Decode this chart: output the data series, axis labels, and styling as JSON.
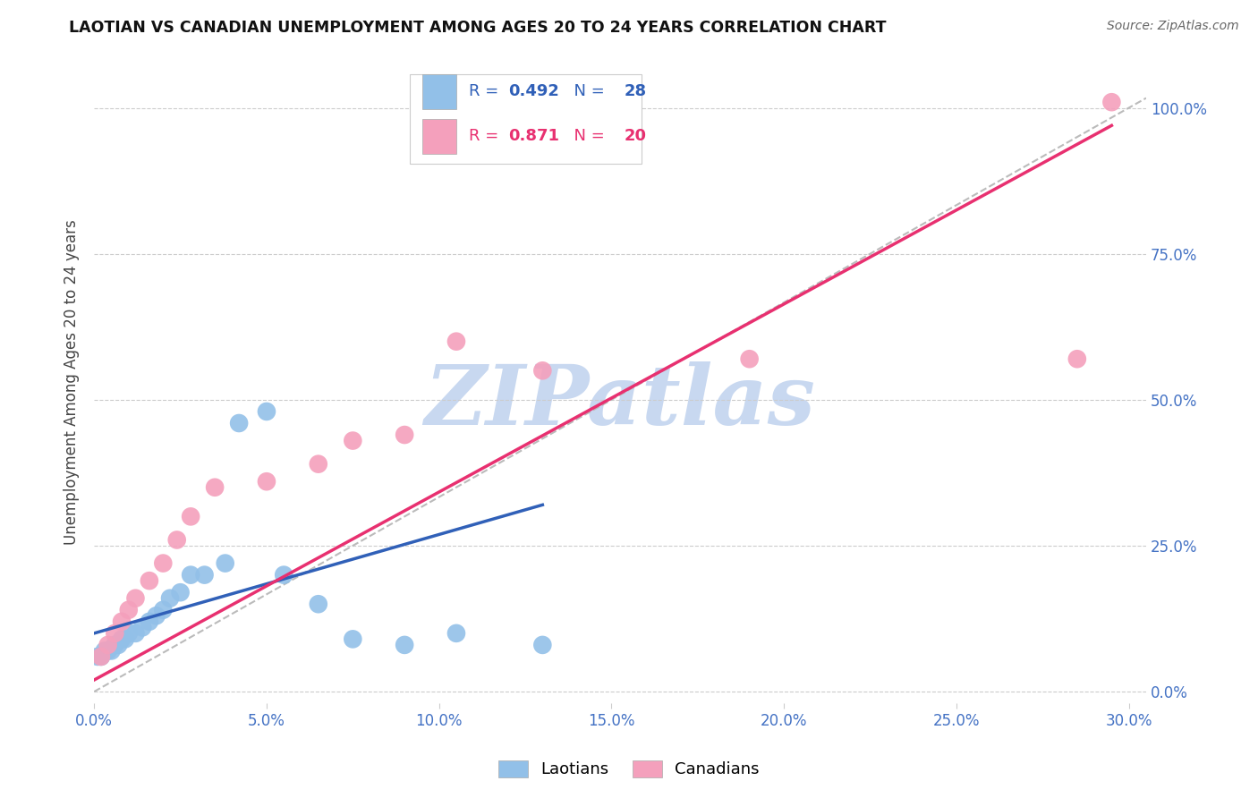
{
  "title": "LAOTIAN VS CANADIAN UNEMPLOYMENT AMONG AGES 20 TO 24 YEARS CORRELATION CHART",
  "source": "Source: ZipAtlas.com",
  "xlabel_ticks": [
    "0.0%",
    "5.0%",
    "10.0%",
    "15.0%",
    "20.0%",
    "25.0%",
    "30.0%"
  ],
  "xlabel_values": [
    0.0,
    0.05,
    0.1,
    0.15,
    0.2,
    0.25,
    0.3
  ],
  "ylabel": "Unemployment Among Ages 20 to 24 years",
  "ylabel_ticks_right": [
    "0.0%",
    "25.0%",
    "50.0%",
    "75.0%",
    "100.0%"
  ],
  "ylabel_values_right": [
    0.0,
    0.25,
    0.5,
    0.75,
    1.0
  ],
  "xlim": [
    0.0,
    0.305
  ],
  "ylim": [
    -0.02,
    1.08
  ],
  "blue_color": "#92C0E8",
  "pink_color": "#F4A0BC",
  "blue_line_color": "#3060B8",
  "pink_line_color": "#E83070",
  "ref_line_color": "#BBBBBB",
  "watermark": "ZIPatlas",
  "watermark_color": "#C8D8F0",
  "laotians_x": [
    0.001,
    0.002,
    0.003,
    0.004,
    0.005,
    0.006,
    0.007,
    0.008,
    0.009,
    0.01,
    0.012,
    0.014,
    0.016,
    0.018,
    0.02,
    0.022,
    0.025,
    0.028,
    0.032,
    0.038,
    0.042,
    0.05,
    0.055,
    0.065,
    0.075,
    0.09,
    0.105,
    0.13
  ],
  "laotians_y": [
    0.06,
    0.06,
    0.07,
    0.07,
    0.07,
    0.08,
    0.08,
    0.09,
    0.09,
    0.1,
    0.1,
    0.11,
    0.12,
    0.13,
    0.14,
    0.16,
    0.17,
    0.2,
    0.2,
    0.22,
    0.46,
    0.48,
    0.2,
    0.15,
    0.09,
    0.08,
    0.1,
    0.08
  ],
  "canadians_x": [
    0.002,
    0.004,
    0.006,
    0.008,
    0.01,
    0.012,
    0.016,
    0.02,
    0.024,
    0.028,
    0.035,
    0.05,
    0.065,
    0.075,
    0.09,
    0.105,
    0.13,
    0.19,
    0.285,
    0.295
  ],
  "canadians_y": [
    0.06,
    0.08,
    0.1,
    0.12,
    0.14,
    0.16,
    0.19,
    0.22,
    0.26,
    0.3,
    0.35,
    0.36,
    0.39,
    0.43,
    0.44,
    0.6,
    0.55,
    0.57,
    0.57,
    1.01
  ],
  "blue_line_x": [
    0.0,
    0.13
  ],
  "blue_line_y": [
    0.1,
    0.32
  ],
  "pink_line_x": [
    0.0,
    0.295
  ],
  "pink_line_y": [
    0.02,
    0.97
  ],
  "ref_line_x": [
    0.0,
    0.305
  ],
  "ref_line_y": [
    0.0,
    1.017
  ]
}
